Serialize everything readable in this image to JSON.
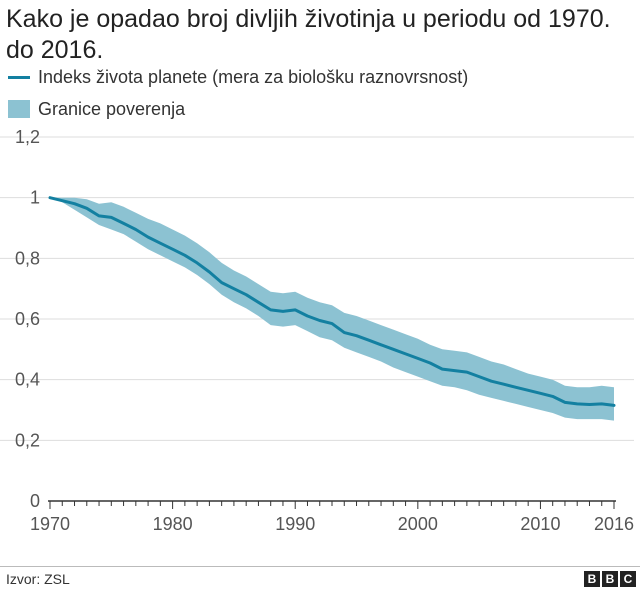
{
  "colors": {
    "line": "#1380a1",
    "band": "#8cc2d2",
    "grid": "#dddddd",
    "axis": "#333333",
    "text": "#222222"
  },
  "chart_data": {
    "type": "line",
    "title": "Kako je opadao broj divljih životinja u periodu od 1970. do 2016.",
    "legend": {
      "line_label": "Indeks života planete (mera za biološku raznovrsnost)",
      "band_label": "Granice poverenja",
      "placement": "top-left"
    },
    "xlabel": "",
    "ylabel": "",
    "xlim": [
      1970,
      2016
    ],
    "ylim": [
      0,
      1.2
    ],
    "x_ticks": [
      {
        "value": 1970,
        "label": "1970"
      },
      {
        "value": 1980,
        "label": "1980"
      },
      {
        "value": 1990,
        "label": "1990"
      },
      {
        "value": 2000,
        "label": "2000"
      },
      {
        "value": 2010,
        "label": "2010"
      },
      {
        "value": 2016,
        "label": "2016"
      }
    ],
    "y_ticks": [
      {
        "value": 0,
        "label": "0"
      },
      {
        "value": 0.2,
        "label": "0,2"
      },
      {
        "value": 0.4,
        "label": "0,4"
      },
      {
        "value": 0.6,
        "label": "0,6"
      },
      {
        "value": 0.8,
        "label": "0,8"
      },
      {
        "value": 1,
        "label": "1"
      },
      {
        "value": 1.2,
        "label": "1,2"
      }
    ],
    "grid": true,
    "x": [
      1970,
      1971,
      1972,
      1973,
      1974,
      1975,
      1976,
      1977,
      1978,
      1979,
      1980,
      1981,
      1982,
      1983,
      1984,
      1985,
      1986,
      1987,
      1988,
      1989,
      1990,
      1991,
      1992,
      1993,
      1994,
      1995,
      1996,
      1997,
      1998,
      1999,
      2000,
      2001,
      2002,
      2003,
      2004,
      2005,
      2006,
      2007,
      2008,
      2009,
      2010,
      2011,
      2012,
      2013,
      2014,
      2015,
      2016
    ],
    "series": [
      {
        "name": "Indeks života planete (mera za biološku raznovrsnost)",
        "values": [
          1.0,
          0.99,
          0.98,
          0.965,
          0.94,
          0.935,
          0.915,
          0.895,
          0.87,
          0.85,
          0.83,
          0.81,
          0.785,
          0.755,
          0.72,
          0.7,
          0.68,
          0.655,
          0.63,
          0.625,
          0.63,
          0.61,
          0.595,
          0.585,
          0.555,
          0.545,
          0.53,
          0.515,
          0.5,
          0.485,
          0.47,
          0.455,
          0.435,
          0.43,
          0.425,
          0.41,
          0.395,
          0.385,
          0.375,
          0.365,
          0.355,
          0.345,
          0.325,
          0.32,
          0.318,
          0.32,
          0.315
        ]
      }
    ],
    "band": {
      "name": "Granice poverenja",
      "upper": [
        1.0,
        1.0,
        1.0,
        0.995,
        0.98,
        0.985,
        0.97,
        0.95,
        0.93,
        0.915,
        0.895,
        0.875,
        0.85,
        0.82,
        0.785,
        0.76,
        0.74,
        0.715,
        0.69,
        0.685,
        0.69,
        0.67,
        0.655,
        0.645,
        0.62,
        0.61,
        0.595,
        0.58,
        0.565,
        0.55,
        0.535,
        0.515,
        0.5,
        0.495,
        0.49,
        0.475,
        0.46,
        0.45,
        0.435,
        0.42,
        0.41,
        0.4,
        0.38,
        0.375,
        0.375,
        0.38,
        0.375
      ],
      "lower": [
        1.0,
        0.985,
        0.96,
        0.935,
        0.91,
        0.895,
        0.88,
        0.855,
        0.83,
        0.81,
        0.79,
        0.77,
        0.745,
        0.715,
        0.68,
        0.655,
        0.635,
        0.61,
        0.58,
        0.575,
        0.58,
        0.56,
        0.54,
        0.53,
        0.505,
        0.49,
        0.475,
        0.46,
        0.44,
        0.425,
        0.41,
        0.395,
        0.38,
        0.375,
        0.365,
        0.35,
        0.34,
        0.33,
        0.32,
        0.31,
        0.3,
        0.29,
        0.275,
        0.27,
        0.27,
        0.27,
        0.265
      ]
    }
  },
  "footer": {
    "source": "Izvor: ZSL",
    "logo_letters": [
      "B",
      "B",
      "C"
    ]
  }
}
